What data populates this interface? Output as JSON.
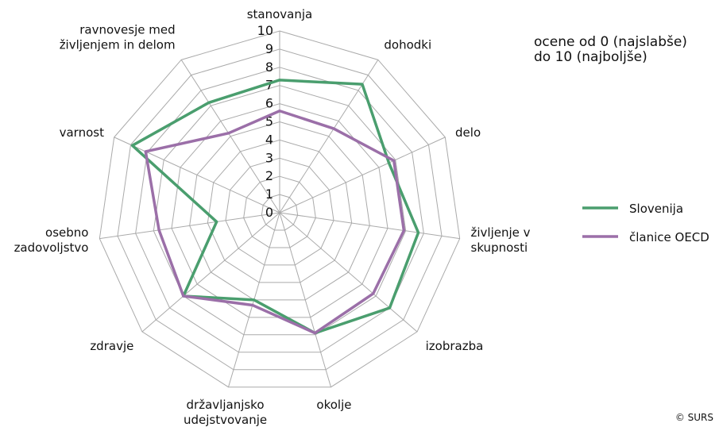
{
  "chart_data": {
    "type": "radar",
    "categories": [
      "stanovanja",
      "dohodki",
      "delo",
      "življenje v\nskupnosti",
      "izobrazba",
      "okolje",
      "državljanjsko\nudejstvovanje",
      "zdravje",
      "osebno\nzadovoljstvo",
      "varnost",
      "ravnovesje med\nživljenjem in delom"
    ],
    "series": [
      {
        "name": "Slovenija",
        "color": "#4a9e6e",
        "values": [
          7.3,
          8.4,
          6.6,
          7.7,
          8.0,
          6.9,
          5.0,
          7.0,
          3.5,
          8.9,
          7.2
        ]
      },
      {
        "name": "članice OECD",
        "color": "#9b6fa8",
        "values": [
          5.6,
          5.5,
          6.9,
          6.9,
          6.8,
          6.9,
          5.3,
          7.0,
          6.7,
          8.1,
          5.2
        ]
      }
    ],
    "rlim": [
      0,
      10
    ],
    "rticks": [
      0,
      1,
      2,
      3,
      4,
      5,
      6,
      7,
      8,
      9,
      10
    ],
    "note": "ocene od 0 (najslabše)\ndo 10 (najboljše)",
    "source": "© SURS"
  }
}
